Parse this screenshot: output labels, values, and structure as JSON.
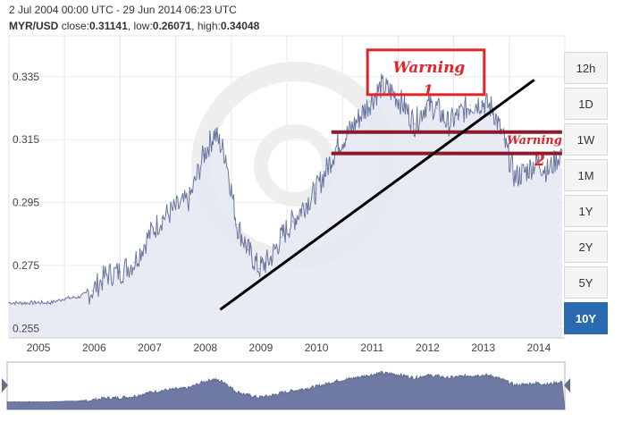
{
  "header": {
    "date_range": "2 Jul 2004 00:00 UTC - 29 Jun 2014 06:23 UTC",
    "symbol": "MYR/USD",
    "close_label": "close:",
    "close_value": "0.31141",
    "low_label": "low:",
    "low_value": "0.26071",
    "high_label": "high:",
    "high_value": "0.34048"
  },
  "range_buttons": [
    {
      "label": "12h",
      "active": false
    },
    {
      "label": "1D",
      "active": false
    },
    {
      "label": "1W",
      "active": false
    },
    {
      "label": "1M",
      "active": false
    },
    {
      "label": "1Y",
      "active": false
    },
    {
      "label": "2Y",
      "active": false
    },
    {
      "label": "5Y",
      "active": false
    },
    {
      "label": "10Y",
      "active": true
    }
  ],
  "annotations": {
    "warning1_text": "Warning",
    "warning1_number": "1",
    "warning2_text": "Warning",
    "warning2_number": "2"
  },
  "colors": {
    "series_line": "#6a76a0",
    "series_fill": "#e4e7f2",
    "navigator_fill": "#6e7aa4",
    "annotation_red": "#e0242b",
    "support_line": "#8b1a2b",
    "trend_line": "#000000",
    "active_button": "#2a6bb0"
  },
  "chart_data": {
    "type": "area",
    "x": [
      2004.5,
      2004.75,
      2005.0,
      2005.25,
      2005.5,
      2005.75,
      2006.0,
      2006.25,
      2006.5,
      2006.75,
      2007.0,
      2007.25,
      2007.5,
      2007.75,
      2008.0,
      2008.2,
      2008.4,
      2008.6,
      2008.8,
      2009.0,
      2009.2,
      2009.4,
      2009.6,
      2009.8,
      2010.0,
      2010.2,
      2010.4,
      2010.6,
      2010.8,
      2011.0,
      2011.2,
      2011.4,
      2011.6,
      2011.8,
      2012.0,
      2012.2,
      2012.4,
      2012.6,
      2012.8,
      2013.0,
      2013.2,
      2013.4,
      2013.6,
      2013.8,
      2014.0,
      2014.2,
      2014.45
    ],
    "y": [
      0.2632,
      0.2631,
      0.2632,
      0.2632,
      0.2645,
      0.265,
      0.267,
      0.272,
      0.273,
      0.276,
      0.284,
      0.29,
      0.293,
      0.296,
      0.31,
      0.317,
      0.31,
      0.288,
      0.28,
      0.274,
      0.277,
      0.284,
      0.289,
      0.294,
      0.298,
      0.305,
      0.313,
      0.317,
      0.322,
      0.327,
      0.332,
      0.33,
      0.326,
      0.32,
      0.326,
      0.325,
      0.32,
      0.323,
      0.326,
      0.327,
      0.325,
      0.315,
      0.303,
      0.305,
      0.308,
      0.305,
      0.3114
    ],
    "y_ticks": [
      "0.255",
      "0.275",
      "0.295",
      "0.315",
      "0.335"
    ],
    "x_ticks": [
      "2005",
      "2006",
      "2007",
      "2008",
      "2009",
      "2010",
      "2011",
      "2012",
      "2013",
      "2014"
    ],
    "ylim": [
      0.252,
      0.348
    ],
    "xlim": [
      2004.5,
      2014.5
    ],
    "grid": true,
    "support_levels": [
      0.3174,
      0.3106
    ],
    "trend_line": [
      [
        2008.3,
        0.261
      ],
      [
        2013.95,
        0.334
      ]
    ],
    "warning_box": {
      "x": [
        2010.95,
        2013.05
      ],
      "y": [
        0.3293,
        0.3435
      ]
    }
  }
}
